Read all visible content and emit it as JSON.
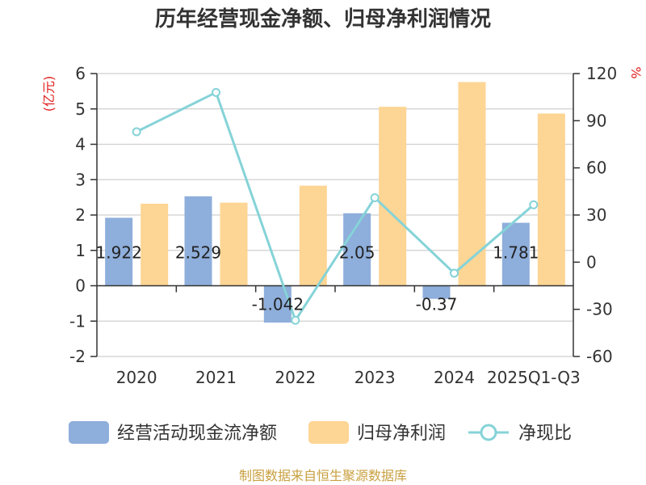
{
  "chart_data": {
    "type": "bar",
    "title": "历年经营现金净额、归母净利润情况",
    "categories": [
      "2020",
      "2021",
      "2022",
      "2023",
      "2024",
      "2025Q1-Q3"
    ],
    "series": [
      {
        "name": "经营活动现金流净额",
        "kind": "bar",
        "axis": "left",
        "color": "#8eaedb",
        "values": [
          1.922,
          2.529,
          -1.042,
          2.05,
          -0.37,
          1.781
        ],
        "labels": [
          "1.922",
          "2.529",
          "-1.042",
          "2.05",
          "-0.37",
          "1.781"
        ]
      },
      {
        "name": "归母净利润",
        "kind": "bar",
        "axis": "left",
        "color": "#fdd594",
        "values": [
          2.32,
          2.35,
          2.83,
          5.06,
          5.76,
          4.87
        ]
      },
      {
        "name": "净现比",
        "kind": "line",
        "axis": "right",
        "color": "#85d3d8",
        "values": [
          83,
          108,
          -37,
          41,
          -7,
          36.5
        ]
      }
    ],
    "y_left": {
      "unit": "(亿元)",
      "min": -2,
      "max": 6,
      "ticks": [
        "-2",
        "-1",
        "0",
        "1",
        "2",
        "3",
        "4",
        "5",
        "6"
      ]
    },
    "y_right": {
      "unit": "%",
      "min": -60,
      "max": 120,
      "ticks": [
        "-60",
        "-30",
        "0",
        "30",
        "60",
        "90",
        "120"
      ]
    },
    "legend_position": "bottom",
    "grid": true
  },
  "source": "制图数据来自恒生聚源数据库"
}
